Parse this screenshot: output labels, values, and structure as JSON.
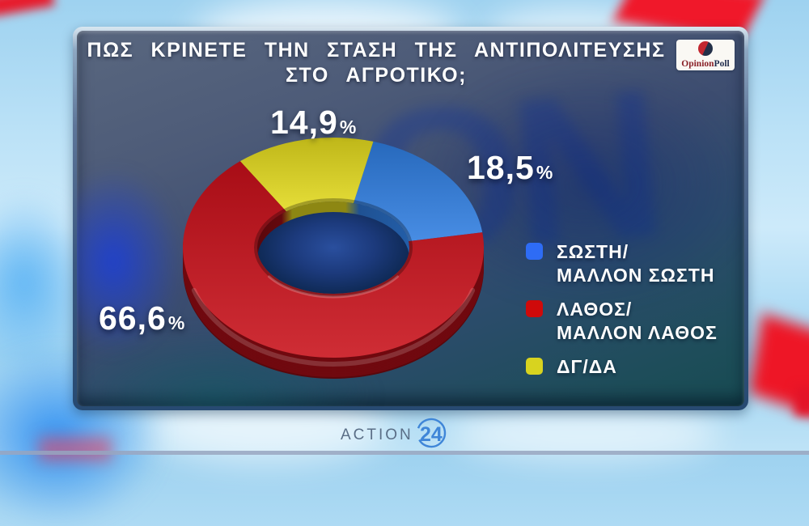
{
  "header": {
    "title_line1": "ΠΩΣ ΚΡΙΝΕΤΕ ΤΗΝ ΣΤΑΣΗ ΤΗΣ ΑΝΤΙΠΟΛΙΤΕΥΣΗΣ",
    "title_line2": "ΣΤΟ ΑΓΡΟΤΙΚΟ;"
  },
  "branding": {
    "opinion_poll": {
      "part1": "Opinion",
      "part2": "Poll",
      "part1_color": "#8a2128",
      "part2_color": "#1f2b4c"
    },
    "action24": {
      "name": "ACTION",
      "number": "24",
      "name_color": "#5a6e86",
      "accent_color": "#3f86d8"
    }
  },
  "chart_data": {
    "type": "pie",
    "subtype": "3d-donut",
    "title": "ΠΩΣ ΚΡΙΝΕΤΕ ΤΗΝ ΣΤΑΣΗ ΤΗΣ ΑΝΤΙΠΟΛΙΤΕΥΣΗΣ ΣΤΟ ΑΓΡΟΤΙΚΟ;",
    "percent_symbol": "%",
    "legend_position": "right",
    "start_angle_deg": 8,
    "draw_order": [
      0,
      2,
      1
    ],
    "series": [
      {
        "label": "ΣΩΣΤΗ/ΜΑΛΛΟΝ ΣΩΣΤΗ",
        "value": 18.5,
        "display": "18,5",
        "color": "#2f7de0"
      },
      {
        "label": "ΛΑΘΟΣ/ΜΑΛΛΟΝ ΛΑΘΟΣ",
        "value": 66.6,
        "display": "66,6",
        "color": "#c8101a"
      },
      {
        "label": "ΔΓ/ΔΑ",
        "value": 14.9,
        "display": "14,9",
        "color": "#e3da1e"
      }
    ]
  },
  "legend": {
    "items": [
      {
        "color": "#2e6cf5",
        "line1": "ΣΩΣΤΗ/",
        "line2": "ΜΑΛΛΟΝ ΣΩΣΤΗ"
      },
      {
        "color": "#cf0a0a",
        "line1": "ΛΑΘΟΣ/",
        "line2": "ΜΑΛΛΟΝ ΛΑΘΟΣ"
      },
      {
        "color": "#d8d31f",
        "line1": "ΔΓ/ΔΑ",
        "line2": ""
      }
    ]
  },
  "watermark_text": "ON"
}
